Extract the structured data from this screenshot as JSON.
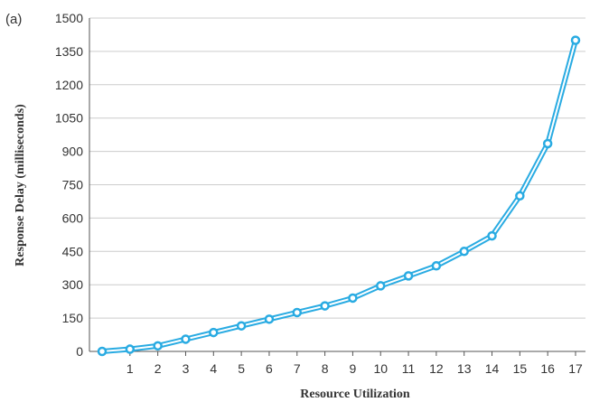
{
  "chart_data": {
    "type": "line",
    "panel_label": "(a)",
    "xlabel": "Resource Utilization",
    "ylabel": "Response Delay (milliseconds)",
    "x_ticks": [
      "1",
      "2",
      "3",
      "4",
      "5",
      "6",
      "7",
      "8",
      "9",
      "10",
      "11",
      "12",
      "13",
      "14",
      "15",
      "16",
      "17"
    ],
    "y_ticks": [
      "0",
      "150",
      "300",
      "450",
      "600",
      "750",
      "900",
      "1050",
      "1200",
      "1350",
      "1500"
    ],
    "xlim": [
      0,
      17
    ],
    "ylim": [
      0,
      1500
    ],
    "grid": "horizontal",
    "colors": {
      "line": "#29abe2",
      "grid": "#cccccc",
      "axis": "#555555",
      "text": "#333333"
    },
    "series": [
      {
        "x": [
          0,
          1,
          2,
          3,
          4,
          5,
          6,
          7,
          8,
          9,
          10,
          11,
          12,
          13,
          14,
          15,
          16,
          17
        ],
        "y": [
          0,
          10,
          25,
          55,
          85,
          115,
          145,
          175,
          205,
          240,
          295,
          340,
          385,
          450,
          520,
          700,
          935,
          1400
        ]
      }
    ]
  }
}
